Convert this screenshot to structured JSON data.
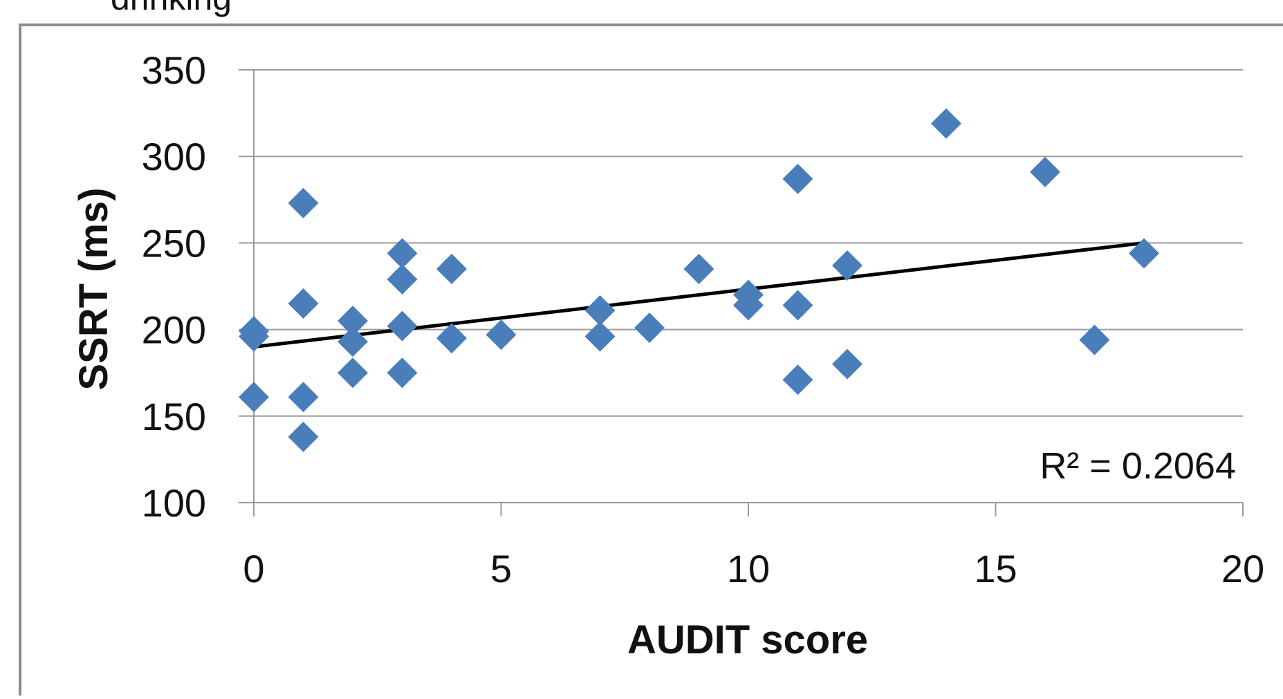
{
  "top_caption": "drinking",
  "chart_data": {
    "type": "scatter",
    "title": "",
    "xlabel": "AUDIT score",
    "ylabel": "SSRT (ms)",
    "xlim": [
      0,
      20
    ],
    "ylim": [
      100,
      350
    ],
    "xticks": [
      0,
      5,
      10,
      15,
      20
    ],
    "yticks": [
      100,
      150,
      200,
      250,
      300,
      350
    ],
    "grid": "horizontal",
    "marker": "diamond",
    "marker_color": "#4A7EBB",
    "points": [
      [
        0,
        199
      ],
      [
        0,
        196
      ],
      [
        0,
        161
      ],
      [
        1,
        273
      ],
      [
        1,
        215
      ],
      [
        1,
        161
      ],
      [
        1,
        138
      ],
      [
        2,
        205
      ],
      [
        2,
        193
      ],
      [
        2,
        175
      ],
      [
        3,
        244
      ],
      [
        3,
        229
      ],
      [
        3,
        202
      ],
      [
        3,
        175
      ],
      [
        4,
        235
      ],
      [
        4,
        195
      ],
      [
        5,
        197
      ],
      [
        7,
        211
      ],
      [
        7,
        196
      ],
      [
        8,
        201
      ],
      [
        9,
        235
      ],
      [
        10,
        220
      ],
      [
        10,
        214
      ],
      [
        11,
        287
      ],
      [
        11,
        214
      ],
      [
        11,
        171
      ],
      [
        12,
        237
      ],
      [
        12,
        180
      ],
      [
        14,
        319
      ],
      [
        16,
        291
      ],
      [
        17,
        194
      ],
      [
        18,
        244
      ]
    ],
    "trendline": {
      "type": "linear",
      "x": [
        0,
        18
      ],
      "y": [
        190,
        250
      ],
      "color": "#000000"
    },
    "annotations": [
      {
        "text": "R² = 0.2064",
        "placement": "bottom-right"
      }
    ]
  }
}
